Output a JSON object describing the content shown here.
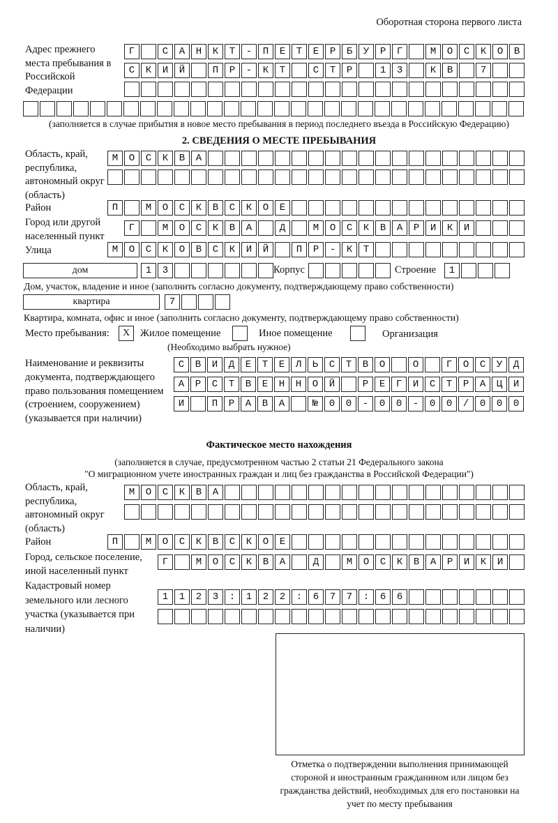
{
  "header": "Оборотная сторона первого листа",
  "prev_address": {
    "label": "Адрес прежнего места пребывания в Российской Федерации",
    "rows": [
      "Г САНКТ-ПЕТЕРБУРГ МОСКОВ",
      "СКИЙ ПР-КТ СТР 13 КВ 7  ",
      "                        ",
      "                              "
    ],
    "note": "(заполняется в случае прибытия в новое место пребывания в период последнего въезда в Российскую Федерацию)"
  },
  "section2": {
    "title": "2. СВЕДЕНИЯ О МЕСТЕ ПРЕБЫВАНИЯ",
    "region_label": "Область, край, республика, автономный округ (область)",
    "region_rows": [
      "МОСКВА                   ",
      "                         "
    ],
    "district_label": "Район",
    "district_row": "П МОСКВСКОЕ              ",
    "city_label": "Город или другой населенный пункт",
    "city_row": "Г МОСКВА Д МОСКВАРИКИ   ",
    "street_label": "Улица",
    "street_row": "МОСКОВСКИЙ ПР-КТ         ",
    "house_type": "дом",
    "house_row": "13      ",
    "korpus_label": "Корпус",
    "korpus_row": "     ",
    "stroenie_label": "Строение",
    "stroenie_row": "1   ",
    "house_note": "Дом, участок, владение и иное (заполнить согласно документу, подтверждающему право собственности)",
    "flat_type": "квартира",
    "flat_row": "7   ",
    "flat_note": "Квартира, комната, офис и иное (заполнить согласно документу, подтверждающему право собственности)",
    "stay_label": "Место пребывания:",
    "options": [
      {
        "label": "Жилое помещение",
        "mark": "X"
      },
      {
        "label": "Иное помещение",
        "mark": ""
      },
      {
        "label": "Организация",
        "mark": ""
      }
    ],
    "options_hint": "(Необходимо выбрать нужное)",
    "doc_label": "Наименование и реквизиты документа, подтверждающего право пользования помещением (строением, сооружением) (указывается при наличии)",
    "doc_rows": [
      "СВИДЕТЕЛЬСТВО О ГОСУД",
      "АРСТВЕННОЙ РЕГИСТРАЦИ",
      "И ПРАВА №00-00-00/000"
    ]
  },
  "actual": {
    "title": "Фактическое место нахождения",
    "note1": "(заполняется в случае, предусмотренном частью 2 статьи 21 Федерального закона",
    "note2": "\"О миграционном учете иностранных граждан и лиц без гражданства в Российской Федерации\")",
    "region_label": "Область, край, республика, автономный округ (область)",
    "region_rows": [
      "МОСКВА                  ",
      "                        "
    ],
    "district_label": "Район",
    "district_row": "П МОСКВСКОЕ              ",
    "city_label": "Город, сельское поселение, иной населенный пункт",
    "city_row": "Г МОСКВА Д МОСКВАРИКИ ",
    "cadastre_label": "Кадастровый номер земельного или лесного участка (указывается при наличии)",
    "cadastre_rows": [
      "1123:122:677:66       ",
      "                      "
    ]
  },
  "stamp_caption": "Отметка о подтверждении выполнения принимающей стороной и иностранным гражданином или лицом без гражданства действий, необходимых для его постановки на учет по месту пребывания"
}
